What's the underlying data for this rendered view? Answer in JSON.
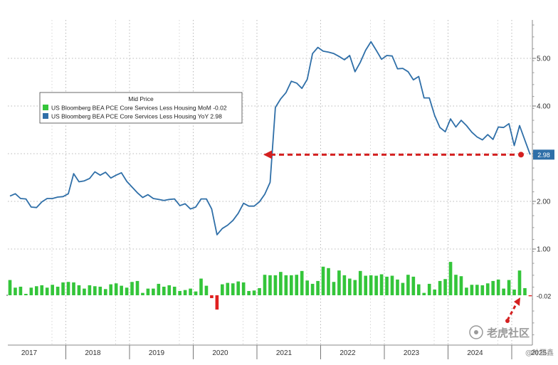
{
  "chart_data": {
    "type": "line",
    "legend": {
      "title": "Mid Price",
      "entries": [
        {
          "name": "US Bloomberg BEA PCE Core Services Less Housing MoM",
          "last": "-0.02",
          "color": "#34c53a"
        },
        {
          "name": "US Bloomberg BEA PCE Core Services Less Housing YoY",
          "last": "2.98",
          "color": "#2f6fa8"
        }
      ],
      "placement": "upper-left"
    },
    "y_ticks": [
      "1.00",
      "2.00",
      "3.00",
      "4.00",
      "5.00"
    ],
    "x_years": [
      "2017",
      "2018",
      "2019",
      "2020",
      "2021",
      "2022",
      "2023",
      "2024",
      "2025"
    ],
    "ylim": [
      -0.9,
      5.8
    ],
    "series": [
      {
        "name": "US Bloomberg BEA PCE Core Services Less Housing YoY",
        "kind": "line",
        "color": "#2f6fa8",
        "start": "2017-01",
        "values": [
          2.11,
          2.16,
          2.06,
          2.05,
          1.88,
          1.87,
          1.99,
          2.06,
          2.06,
          2.09,
          2.1,
          2.16,
          2.58,
          2.41,
          2.43,
          2.48,
          2.62,
          2.55,
          2.61,
          2.49,
          2.55,
          2.6,
          2.42,
          2.3,
          2.18,
          2.08,
          2.14,
          2.06,
          2.04,
          2.02,
          2.04,
          2.05,
          1.91,
          1.95,
          1.84,
          1.88,
          2.05,
          2.05,
          1.84,
          1.3,
          1.43,
          1.5,
          1.6,
          1.75,
          1.96,
          1.9,
          1.9,
          1.99,
          2.15,
          2.4,
          3.97,
          4.15,
          4.28,
          4.52,
          4.48,
          4.37,
          4.56,
          5.1,
          5.23,
          5.15,
          5.13,
          5.1,
          5.04,
          4.97,
          5.06,
          4.72,
          4.92,
          5.17,
          5.35,
          5.17,
          4.98,
          5.06,
          5.05,
          4.78,
          4.79,
          4.72,
          4.55,
          4.62,
          4.17,
          4.17,
          3.8,
          3.55,
          3.46,
          3.73,
          3.56,
          3.7,
          3.59,
          3.45,
          3.35,
          3.29,
          3.4,
          3.3,
          3.56,
          3.55,
          3.63,
          3.17,
          3.59,
          3.28,
          2.98
        ]
      },
      {
        "name": "US Bloomberg BEA PCE Core Services Less Housing MoM",
        "kind": "bar",
        "color": "#34c53a",
        "negative_color": "#e02020",
        "start": "2017-01",
        "values": [
          0.32,
          0.16,
          0.18,
          0.03,
          0.16,
          0.19,
          0.21,
          0.16,
          0.22,
          0.18,
          0.27,
          0.28,
          0.27,
          0.21,
          0.14,
          0.21,
          0.19,
          0.18,
          0.13,
          0.23,
          0.25,
          0.2,
          0.16,
          0.28,
          0.3,
          0.05,
          0.14,
          0.14,
          0.24,
          0.18,
          0.21,
          0.18,
          0.09,
          0.11,
          0.14,
          0.08,
          0.35,
          0.2,
          -0.06,
          -0.3,
          0.23,
          0.26,
          0.25,
          0.29,
          0.27,
          0.09,
          0.1,
          0.15,
          0.43,
          0.42,
          0.42,
          0.49,
          0.42,
          0.42,
          0.43,
          0.51,
          0.31,
          0.24,
          0.3,
          0.6,
          0.57,
          0.28,
          0.52,
          0.42,
          0.35,
          0.32,
          0.51,
          0.41,
          0.42,
          0.41,
          0.44,
          0.39,
          0.41,
          0.33,
          0.26,
          0.43,
          0.39,
          0.23,
          0.05,
          0.24,
          0.12,
          0.3,
          0.34,
          0.7,
          0.43,
          0.4,
          0.16,
          0.22,
          0.22,
          0.21,
          0.25,
          0.3,
          0.33,
          0.14,
          0.32,
          0.12,
          0.52,
          0.15,
          -0.02
        ]
      }
    ],
    "reference_value": "2.98",
    "reference_line": {
      "style": "dashed-arrow",
      "color": "#d42020"
    },
    "grid": true,
    "axis_position": "right",
    "watermark": "老虎社区",
    "watermark_footer": "@叶亚鑫"
  }
}
